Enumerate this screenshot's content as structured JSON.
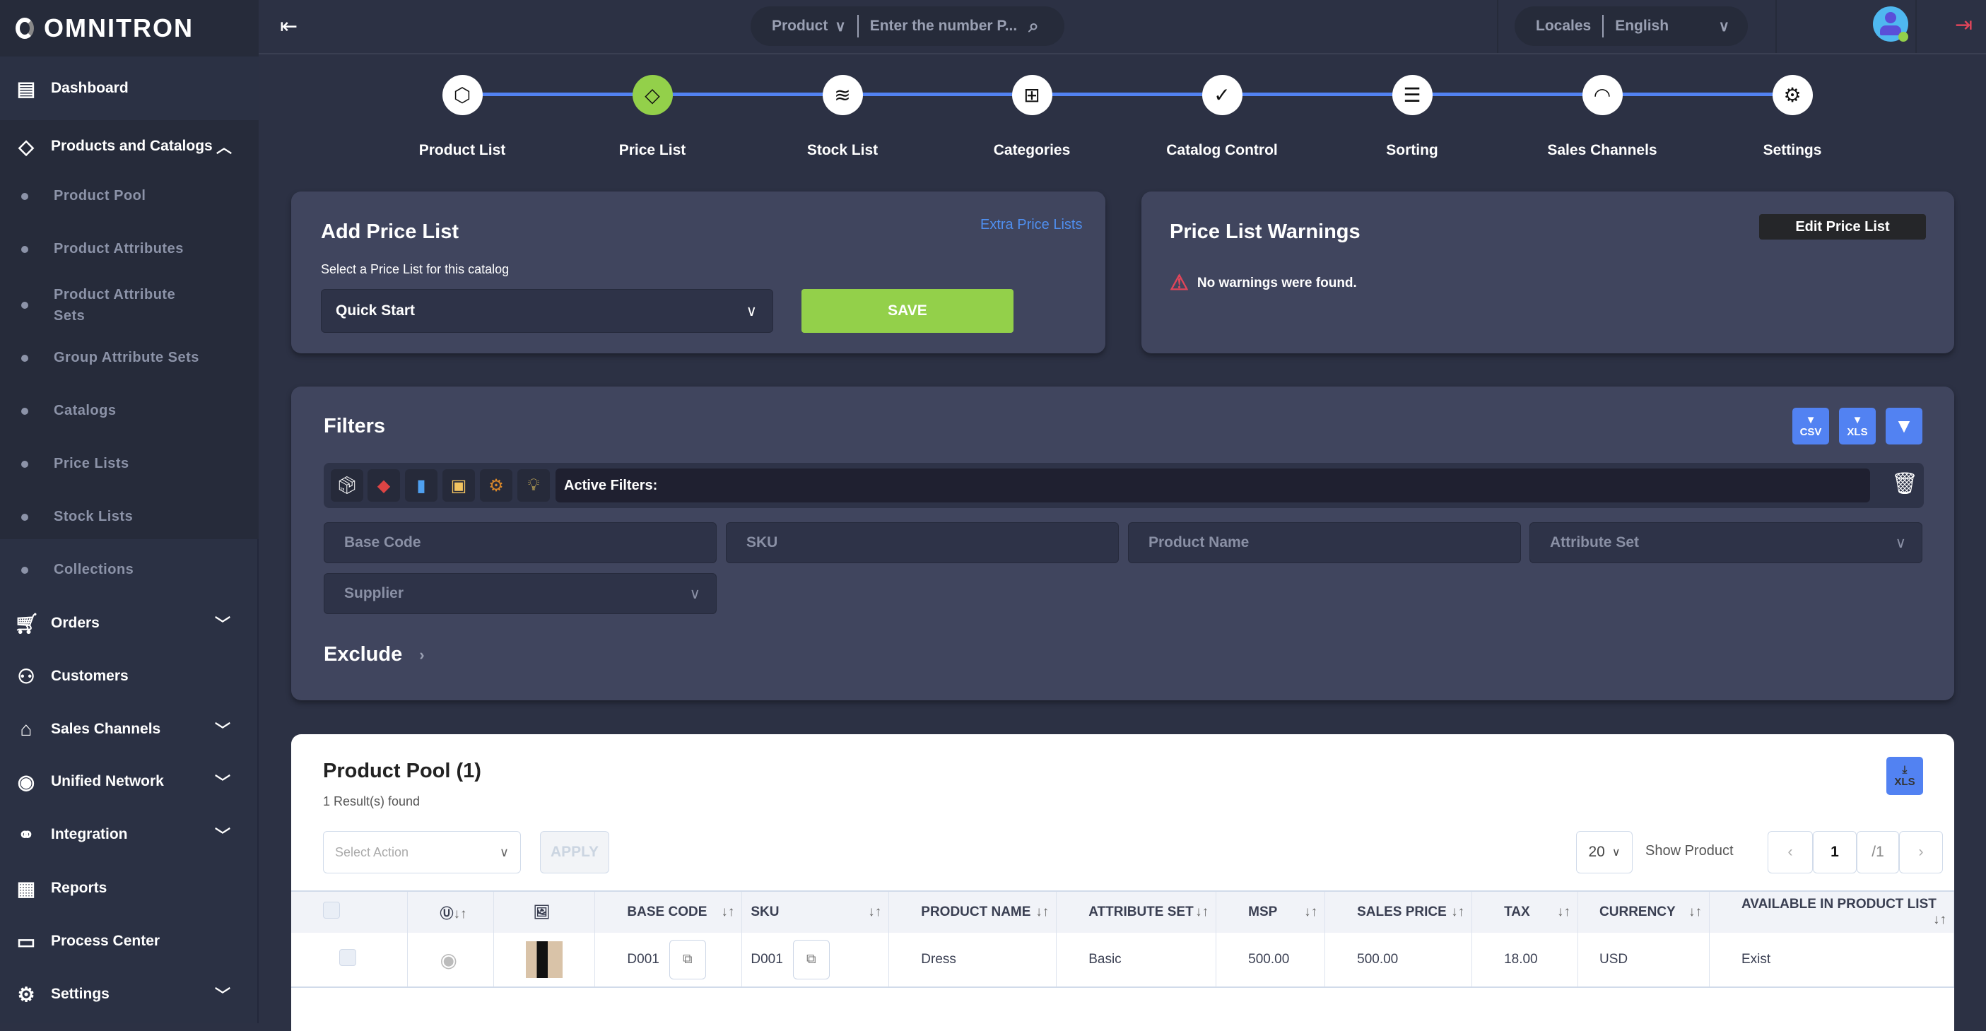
{
  "app": {
    "logo": "OMNITRON"
  },
  "header": {
    "search_type": "Product",
    "search_placeholder": "Enter the number P...",
    "locales_label": "Locales",
    "locale_value": "English"
  },
  "sidebar": {
    "items": [
      {
        "label": "Dashboard",
        "icon": "dashboard-icon"
      },
      {
        "label": "Products and Catalogs",
        "icon": "tag-icon",
        "expanded": true
      },
      {
        "label": "Orders",
        "icon": "cart-icon"
      },
      {
        "label": "Customers",
        "icon": "users-icon"
      },
      {
        "label": "Sales Channels",
        "icon": "store-icon"
      },
      {
        "label": "Unified Network",
        "icon": "unified-icon"
      },
      {
        "label": "Integration",
        "icon": "integration-icon"
      },
      {
        "label": "Reports",
        "icon": "report-icon"
      },
      {
        "label": "Process Center",
        "icon": "process-icon"
      },
      {
        "label": "Settings",
        "icon": "gear-icon"
      }
    ],
    "sub_items": [
      "Product Pool",
      "Product Attributes",
      "Product Attribute Sets",
      "Group Attribute Sets",
      "Catalogs",
      "Price Lists",
      "Stock Lists",
      "Collections"
    ]
  },
  "steps": [
    {
      "label": "Product List",
      "active": false
    },
    {
      "label": "Price List",
      "active": true
    },
    {
      "label": "Stock List",
      "active": false
    },
    {
      "label": "Categories",
      "active": false
    },
    {
      "label": "Catalog Control",
      "active": false
    },
    {
      "label": "Sorting",
      "active": false
    },
    {
      "label": "Sales Channels",
      "active": false
    },
    {
      "label": "Settings",
      "active": false
    }
  ],
  "add_price_list": {
    "title": "Add Price List",
    "extra_link": "Extra Price Lists",
    "select_label": "Select a Price List for this catalog",
    "select_value": "Quick Start",
    "save": "SAVE"
  },
  "warnings": {
    "title": "Price List Warnings",
    "edit_button": "Edit Price List",
    "message": "No warnings were found."
  },
  "filters": {
    "title": "Filters",
    "csv": "CSV",
    "xls": "XLS",
    "active_filters": "Active Filters:",
    "fields": {
      "base_code": "Base Code",
      "sku": "SKU",
      "product_name": "Product Name",
      "attribute_set": "Attribute Set",
      "supplier": "Supplier"
    },
    "exclude": "Exclude"
  },
  "pool": {
    "title": "Product Pool (1)",
    "results": "1 Result(s) found",
    "xls": "XLS",
    "select_action": "Select Action",
    "apply": "APPLY",
    "page_size": "20",
    "show_product": "Show Product",
    "page": "1",
    "total_pages": "/1",
    "columns": [
      "BASE CODE",
      "SKU",
      "PRODUCT NAME",
      "ATTRIBUTE SET",
      "MSP",
      "SALES PRICE",
      "TAX",
      "CURRENCY",
      "AVAILABLE IN PRODUCT LIST"
    ],
    "rows": [
      {
        "base_code": "D001",
        "sku": "D001",
        "product_name": "Dress",
        "attribute_set": "Basic",
        "msp": "500.00",
        "sales_price": "500.00",
        "tax": "18.00",
        "currency": "USD",
        "available": "Exist"
      }
    ]
  },
  "colors": {
    "accent": "#5282f2",
    "active_step": "#93d04a",
    "save": "#93d04a",
    "warning": "#e0455a"
  }
}
